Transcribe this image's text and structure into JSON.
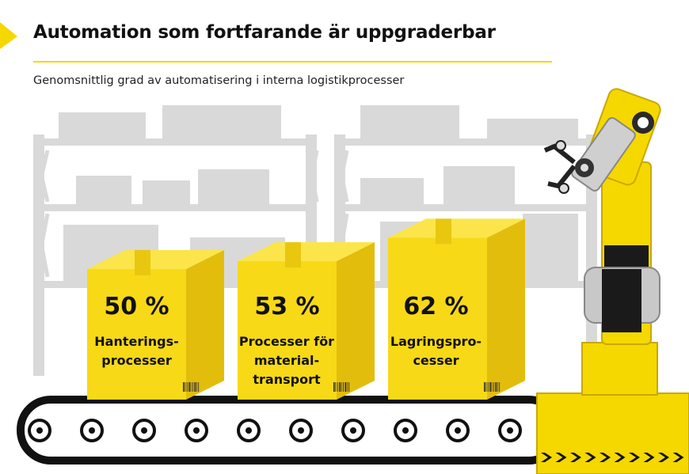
{
  "header": {
    "title": "Automation som fortfarande är uppgraderbar",
    "subtitle": "Genomsnittlig grad av automatisering i interna logistikprocesser"
  },
  "colors": {
    "accent": "#f5d800",
    "box": "#f7d917",
    "box_side": "#e3bd0c",
    "shelf": "#d9d9d9",
    "text": "#111111"
  },
  "chart_data": {
    "type": "bar",
    "title": "Automation som fortfarande är uppgraderbar",
    "subtitle": "Genomsnittlig grad av automatisering i interna logistikprocesser",
    "categories": [
      "Hanterings-\nprocesser",
      "Processer för\nmaterial-\ntransport",
      "Lagringspro-\ncesser"
    ],
    "values": [
      50,
      53,
      62
    ],
    "value_labels": [
      "50 %",
      "53 %",
      "62 %"
    ],
    "unit": "%"
  }
}
